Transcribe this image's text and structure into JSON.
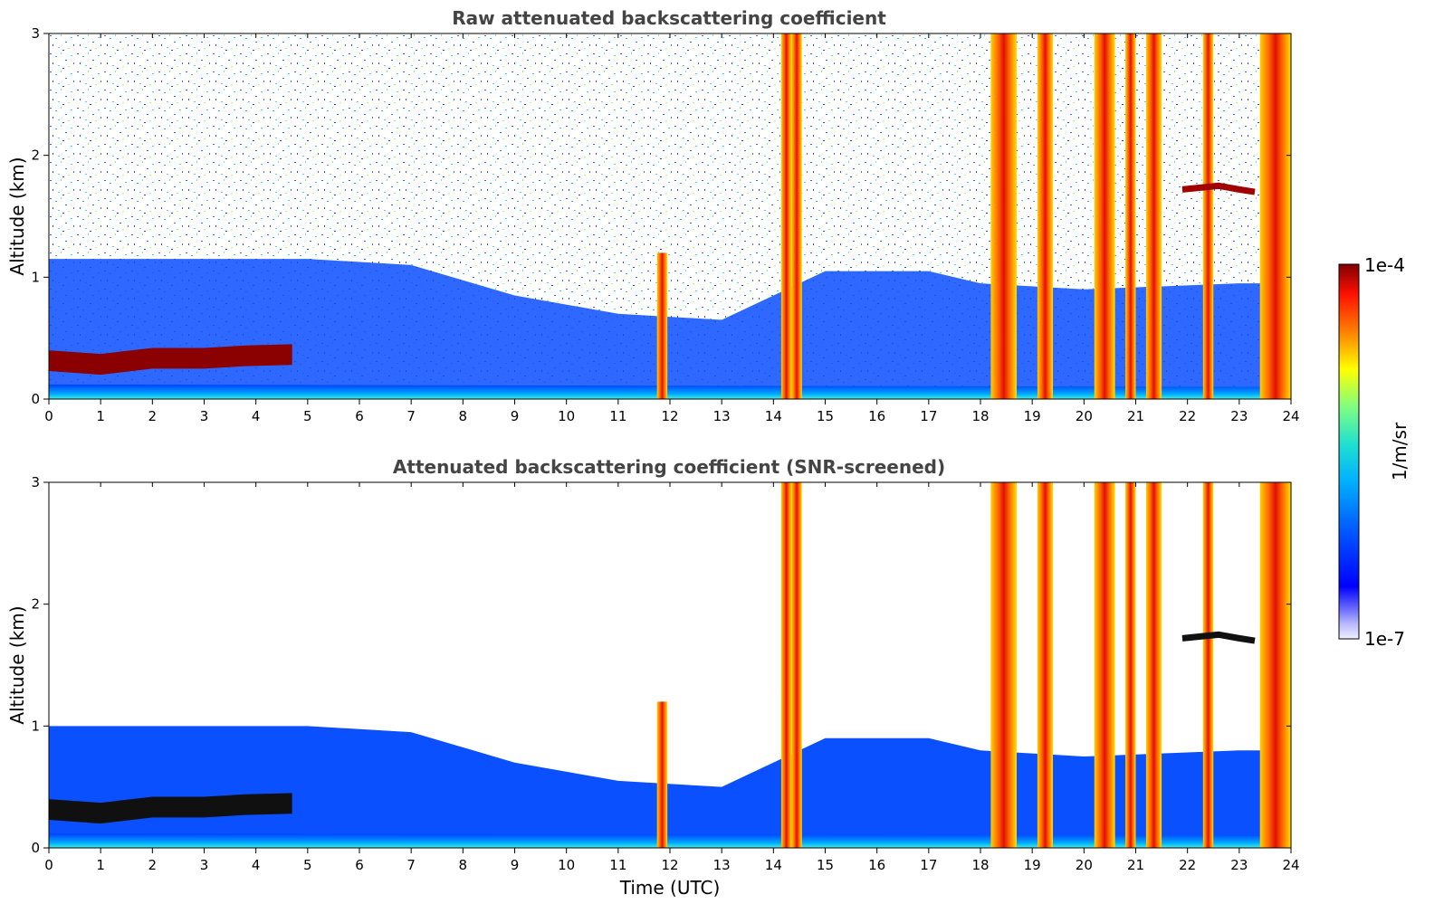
{
  "chart_data": [
    {
      "type": "heatmap",
      "title": "Raw attenuated backscattering coefficient",
      "xlabel": "",
      "ylabel": "Altitude (km)",
      "xlim": [
        0,
        24
      ],
      "ylim": [
        0,
        3
      ],
      "x_ticks": [
        "0",
        "1",
        "2",
        "3",
        "4",
        "5",
        "6",
        "7",
        "8",
        "9",
        "10",
        "11",
        "12",
        "13",
        "14",
        "15",
        "16",
        "17",
        "18",
        "19",
        "20",
        "21",
        "22",
        "23",
        "24"
      ],
      "y_ticks": [
        "0",
        "1",
        "2",
        "3"
      ],
      "screened": false
    },
    {
      "type": "heatmap",
      "title": "Attenuated backscattering coefficient (SNR-screened)",
      "xlabel": "Time (UTC)",
      "ylabel": "Altitude (km)",
      "xlim": [
        0,
        24
      ],
      "ylim": [
        0,
        3
      ],
      "x_ticks": [
        "0",
        "1",
        "2",
        "3",
        "4",
        "5",
        "6",
        "7",
        "8",
        "9",
        "10",
        "11",
        "12",
        "13",
        "14",
        "15",
        "16",
        "17",
        "18",
        "19",
        "20",
        "21",
        "22",
        "23",
        "24"
      ],
      "y_ticks": [
        "0",
        "1",
        "2",
        "3"
      ],
      "screened": true
    }
  ],
  "colorbar": {
    "label": "1/m/sr",
    "max_label": "1e-4",
    "min_label": "1e-7",
    "scale": "log",
    "colormap": "jet"
  },
  "features": {
    "boundary_layer": [
      [
        0,
        0.28
      ],
      [
        1,
        0.25
      ],
      [
        2,
        0.3
      ],
      [
        3,
        0.3
      ],
      [
        3.8,
        0.32
      ],
      [
        4.7,
        0.33
      ]
    ],
    "rain_columns": [
      {
        "start": 11.75,
        "end": 11.95,
        "top": 1.2
      },
      {
        "start": 14.15,
        "end": 14.35,
        "top": 3
      },
      {
        "start": 14.35,
        "end": 14.55,
        "top": 3
      },
      {
        "start": 18.2,
        "end": 18.7,
        "top": 3
      },
      {
        "start": 19.1,
        "end": 19.4,
        "top": 3
      },
      {
        "start": 20.2,
        "end": 20.6,
        "top": 3
      },
      {
        "start": 20.8,
        "end": 21.0,
        "top": 3
      },
      {
        "start": 21.2,
        "end": 21.5,
        "top": 3
      },
      {
        "start": 22.3,
        "end": 22.5,
        "top": 3
      },
      {
        "start": 23.4,
        "end": 24.0,
        "top": 3
      }
    ],
    "cloud_layer": [
      [
        21.9,
        1.72
      ],
      [
        22.6,
        1.75
      ],
      [
        23.0,
        1.72
      ],
      [
        23.3,
        1.7
      ]
    ],
    "aerosol_top": [
      [
        5,
        1.0
      ],
      [
        7,
        0.95
      ],
      [
        9,
        0.7
      ],
      [
        11,
        0.55
      ],
      [
        13,
        0.5
      ],
      [
        15,
        0.9
      ],
      [
        17,
        0.9
      ],
      [
        18,
        0.8
      ],
      [
        20,
        0.75
      ],
      [
        23,
        0.8
      ]
    ]
  }
}
